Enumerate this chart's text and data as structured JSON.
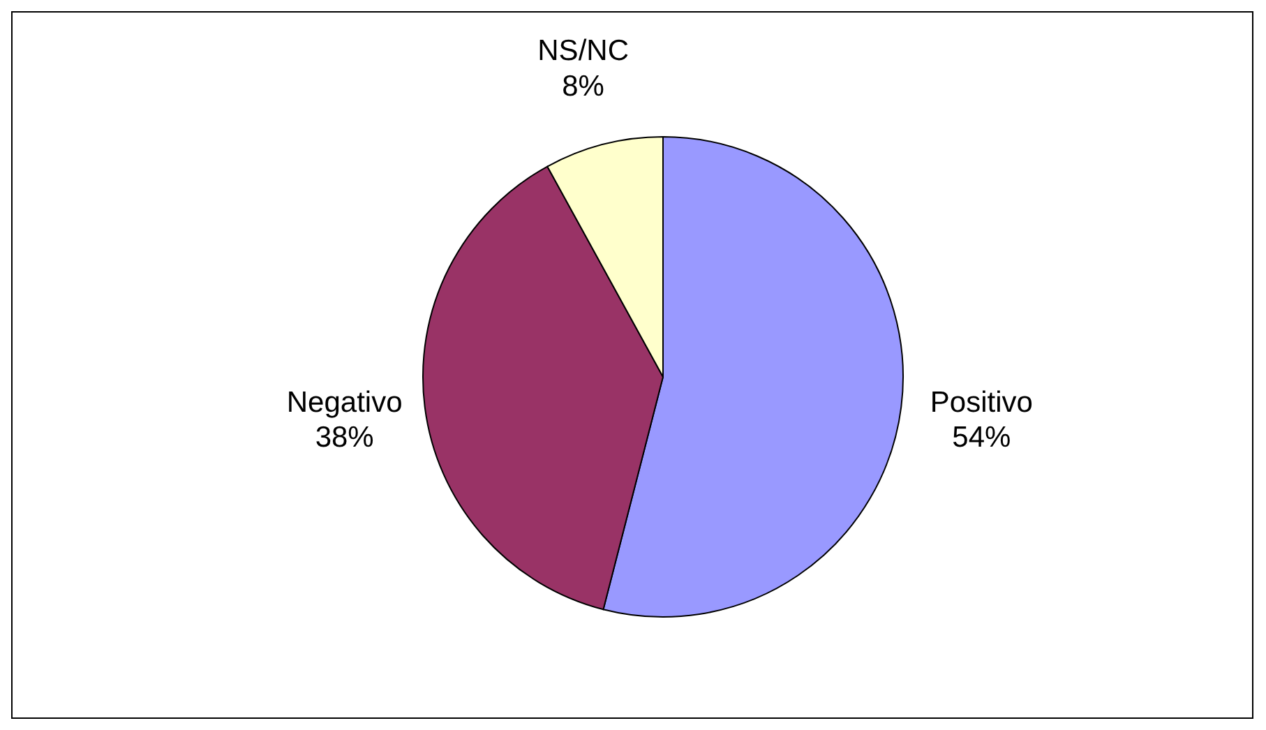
{
  "chart_data": {
    "type": "pie",
    "categories": [
      "Positivo",
      "Negativo",
      "NS/NC"
    ],
    "values": [
      54,
      38,
      8
    ],
    "value_labels": [
      "54%",
      "38%",
      "8%"
    ],
    "colors": [
      "#9999ff",
      "#993366",
      "#ffffcc"
    ],
    "legend": false
  }
}
